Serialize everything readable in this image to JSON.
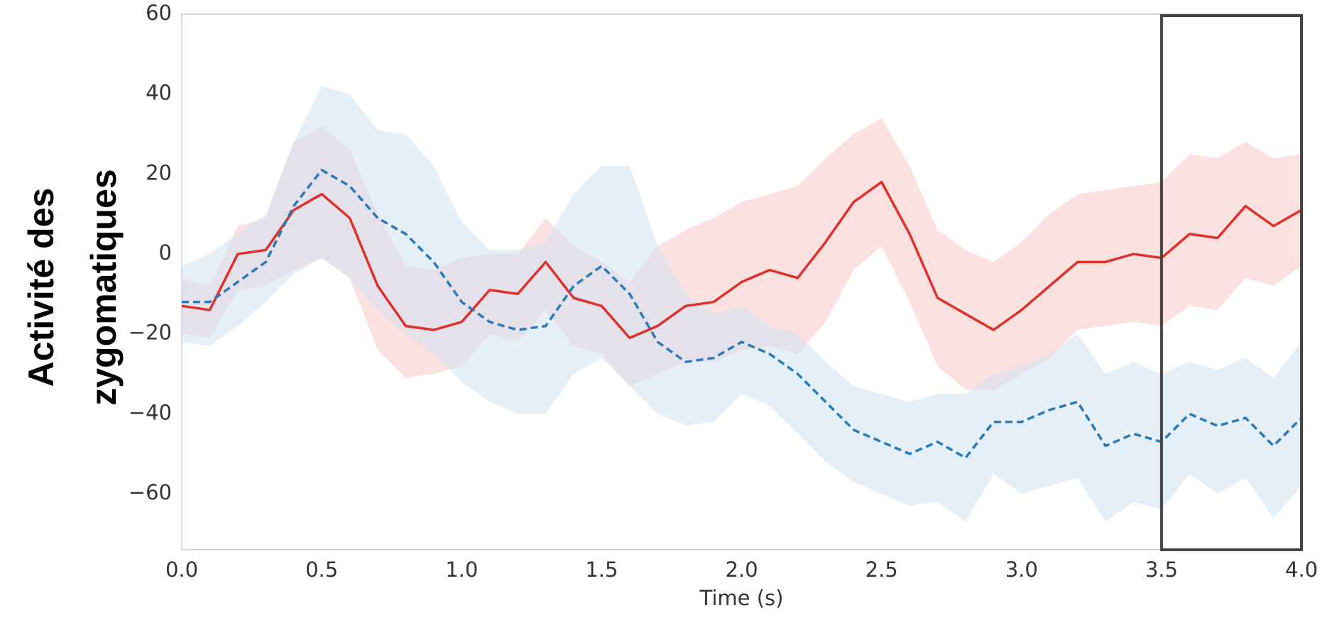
{
  "chart_data": {
    "type": "line",
    "ylabel": [
      "Activité des",
      "zygomatiques"
    ],
    "xlabel": "Time (s)",
    "x": [
      0,
      0.1,
      0.2,
      0.3,
      0.4,
      0.5,
      0.6,
      0.7,
      0.8,
      0.9,
      1.0,
      1.1,
      1.2,
      1.3,
      1.4,
      1.5,
      1.6,
      1.7,
      1.8,
      1.9,
      2.0,
      2.1,
      2.2,
      2.3,
      2.4,
      2.5,
      2.6,
      2.7,
      2.8,
      2.9,
      3.0,
      3.1,
      3.2,
      3.3,
      3.4,
      3.5,
      3.6,
      3.7,
      3.8,
      3.9,
      4.0
    ],
    "series": [
      {
        "color": "#e0302a",
        "band_color": "#f9c9c9",
        "dash": false,
        "values": [
          -13,
          -14,
          0,
          1,
          11,
          15,
          9,
          -8,
          -18,
          -19,
          -17,
          -9,
          -10,
          -2,
          -11,
          -13,
          -21,
          -18,
          -13,
          -12,
          -7,
          -4,
          -6,
          3,
          13,
          18,
          5,
          -11,
          -15,
          -19,
          -14,
          -8,
          -2,
          -2,
          0,
          -1,
          5,
          4,
          12,
          7,
          11
        ],
        "upper": [
          -6,
          -8,
          7,
          9,
          28,
          32,
          26,
          10,
          -3,
          -4,
          -1,
          0,
          0,
          9,
          2,
          -2,
          -7,
          2,
          6,
          9,
          13,
          15,
          17,
          24,
          30,
          34,
          22,
          6,
          1,
          -2,
          3,
          10,
          15,
          16,
          17,
          18,
          25,
          24,
          28,
          24,
          25
        ],
        "lower": [
          -20,
          -21,
          -9,
          -8,
          -4,
          -1,
          -6,
          -24,
          -31,
          -30,
          -28,
          -20,
          -22,
          -14,
          -23,
          -25,
          -33,
          -30,
          -27,
          -27,
          -24,
          -23,
          -25,
          -17,
          -4,
          2,
          -12,
          -28,
          -34,
          -34,
          -30,
          -26,
          -19,
          -18,
          -17,
          -18,
          -13,
          -14,
          -6,
          -8,
          -3
        ]
      },
      {
        "color": "#2a7ab9",
        "band_color": "#cfe1f2",
        "dash": true,
        "values": [
          -12,
          -12,
          -7,
          -2,
          12,
          21,
          17,
          9,
          5,
          -2,
          -12,
          -17,
          -19,
          -18,
          -8,
          -3,
          -10,
          -22,
          -27,
          -26,
          -22,
          -25,
          -30,
          -37,
          -44,
          -47,
          -50,
          -47,
          -51,
          -42,
          -42,
          -39,
          -37,
          -48,
          -45,
          -47,
          -40,
          -43,
          -41,
          -48,
          -41
        ],
        "upper": [
          -3,
          0,
          5,
          10,
          28,
          42,
          40,
          31,
          30,
          22,
          8,
          1,
          1,
          3,
          15,
          22,
          22,
          2,
          -10,
          -15,
          -13,
          -18,
          -20,
          -27,
          -33,
          -35,
          -37,
          -35,
          -35,
          -30,
          -28,
          -25,
          -20,
          -30,
          -27,
          -30,
          -27,
          -29,
          -26,
          -31,
          -22
        ],
        "lower": [
          -22,
          -23,
          -18,
          -12,
          -5,
          -1,
          -6,
          -14,
          -20,
          -25,
          -32,
          -37,
          -40,
          -40,
          -30,
          -26,
          -33,
          -40,
          -43,
          -42,
          -35,
          -38,
          -45,
          -52,
          -57,
          -60,
          -63,
          -62,
          -67,
          -55,
          -60,
          -58,
          -56,
          -67,
          -62,
          -64,
          -55,
          -60,
          -56,
          -66,
          -58
        ]
      }
    ],
    "xlim": [
      0,
      4
    ],
    "ylim": [
      -74,
      60
    ],
    "xticks": [
      {
        "value": 0,
        "label": "0.0"
      },
      {
        "value": 0.5,
        "label": "0.5"
      },
      {
        "value": 1,
        "label": "1.0"
      },
      {
        "value": 1.5,
        "label": "1.5"
      },
      {
        "value": 2,
        "label": "2.0"
      },
      {
        "value": 2.5,
        "label": "2.5"
      },
      {
        "value": 3,
        "label": "3.0"
      },
      {
        "value": 3.5,
        "label": "3.5"
      },
      {
        "value": 4,
        "label": "4.0"
      }
    ],
    "yticks": [
      {
        "value": -60,
        "label": "−60"
      },
      {
        "value": -40,
        "label": "−40"
      },
      {
        "value": -20,
        "label": "−20"
      },
      0,
      20,
      40,
      60
    ],
    "highlight_x": [
      3.5,
      4.0
    ],
    "grid": false
  }
}
